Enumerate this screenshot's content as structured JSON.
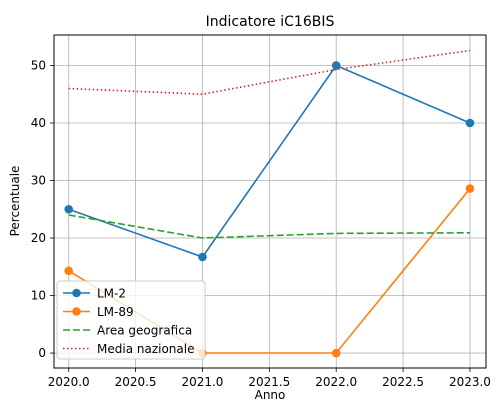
{
  "chart_data": {
    "type": "line",
    "title": "Indicatore iC16BIS",
    "xlabel": "Anno",
    "ylabel": "Percentuale",
    "x": [
      2020,
      2021,
      2022,
      2023
    ],
    "xlim": [
      2019.89,
      2023.12
    ],
    "ylim": [
      -2.6,
      55.3
    ],
    "xticks": [
      2020.0,
      2020.5,
      2021.0,
      2021.5,
      2022.0,
      2022.5,
      2023.0
    ],
    "xtick_labels": [
      "2020.0",
      "2020.5",
      "2021.0",
      "2021.5",
      "2022.0",
      "2022.5",
      "2023.0"
    ],
    "yticks": [
      0,
      10,
      20,
      30,
      40,
      50
    ],
    "ytick_labels": [
      "0",
      "10",
      "20",
      "30",
      "40",
      "50"
    ],
    "grid": true,
    "legend_position": "lower-left",
    "series": [
      {
        "name": "LM-2",
        "values": [
          25.0,
          16.7,
          50.0,
          40.0
        ],
        "color": "#1f77b4",
        "style": "solid",
        "marker": "circle"
      },
      {
        "name": "LM-89",
        "values": [
          14.3,
          0.0,
          0.0,
          28.6
        ],
        "color": "#ff7f0e",
        "style": "solid",
        "marker": "circle"
      },
      {
        "name": "Area geografica",
        "values": [
          24.0,
          20.0,
          20.8,
          20.9
        ],
        "color": "#2ca02c",
        "style": "dashed",
        "marker": "none"
      },
      {
        "name": "Media nazionale",
        "values": [
          46.0,
          45.0,
          49.3,
          52.6
        ],
        "color": "#d62728",
        "style": "dotted",
        "marker": "none"
      }
    ]
  }
}
